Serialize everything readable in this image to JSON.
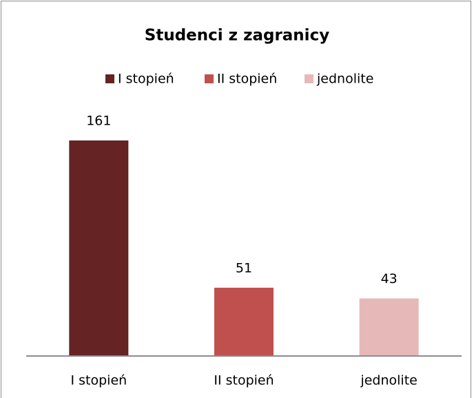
{
  "chart_data": {
    "type": "bar",
    "title": "Studenci z zagranicy",
    "categories": [
      "I stopień",
      "II stopień",
      "jednolite"
    ],
    "values": [
      161,
      51,
      43
    ],
    "colors": [
      "#652324",
      "#c0504d",
      "#e6b9b8"
    ],
    "legend": "top",
    "grid": false
  }
}
